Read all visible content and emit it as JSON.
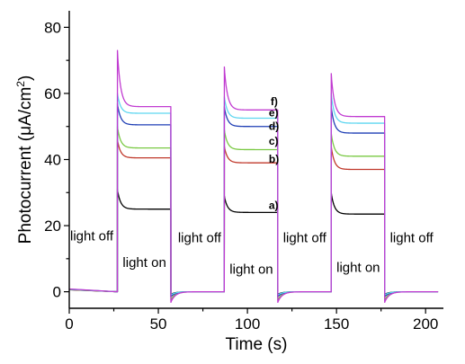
{
  "chart_data": {
    "type": "line",
    "title": "",
    "xlabel": "Time (s)",
    "ylabel_main": "Photocurrent (μA/cm",
    "ylabel_sup": "2",
    "ylabel_end": ")",
    "xlim": [
      0,
      210
    ],
    "ylim": [
      -5,
      85
    ],
    "xticks": [
      0,
      50,
      100,
      150,
      200
    ],
    "yticks": [
      0,
      20,
      40,
      60,
      80
    ],
    "grid": false,
    "legend": "none",
    "cycles": [
      {
        "on": 27,
        "off": 57
      },
      {
        "on": 87,
        "off": 117
      },
      {
        "on": 147,
        "off": 177
      }
    ],
    "end_time": 207,
    "series": [
      {
        "label": "a)",
        "color": "#000000",
        "peaks": [
          31,
          29,
          30
        ],
        "steady": [
          25,
          24,
          23.5
        ],
        "undershoot": -0.8
      },
      {
        "label": "b)",
        "color": "#c0392b",
        "peaks": [
          46,
          44,
          44
        ],
        "steady": [
          40.5,
          39,
          37
        ],
        "undershoot": -1.5
      },
      {
        "label": "c)",
        "color": "#7ac943",
        "peaks": [
          50,
          49,
          48
        ],
        "steady": [
          43.5,
          43,
          41
        ],
        "undershoot": -2.5
      },
      {
        "label": "d)",
        "color": "#1f3fb5",
        "peaks": [
          57,
          56,
          56
        ],
        "steady": [
          50.5,
          50,
          48
        ],
        "undershoot": -1.5
      },
      {
        "label": "e)",
        "color": "#5ed6f0",
        "peaks": [
          60,
          59,
          60
        ],
        "steady": [
          54,
          52.5,
          51
        ],
        "undershoot": -1.0
      },
      {
        "label": "f)",
        "color": "#c13cd1",
        "peaks": [
          73,
          68,
          66
        ],
        "steady": [
          56,
          55,
          53
        ],
        "undershoot": -3.2
      }
    ],
    "annotations": [
      {
        "text": "light off",
        "x": 0.5,
        "y": 15.5
      },
      {
        "text": "light on",
        "x": 30,
        "y": 7.5
      },
      {
        "text": "light off",
        "x": 61,
        "y": 15
      },
      {
        "text": "light on",
        "x": 90,
        "y": 5.5
      },
      {
        "text": "light off",
        "x": 120,
        "y": 15
      },
      {
        "text": "light on",
        "x": 150,
        "y": 6
      },
      {
        "text": "light off",
        "x": 180,
        "y": 15
      }
    ],
    "series_label_positions": [
      {
        "label": "f)",
        "x": 113,
        "y": 56.5
      },
      {
        "label": "e)",
        "x": 112,
        "y": 53
      },
      {
        "label": "d)",
        "x": 112,
        "y": 49
      },
      {
        "label": "c)",
        "x": 112,
        "y": 44.5
      },
      {
        "label": "b)",
        "x": 112,
        "y": 39
      },
      {
        "label": "a)",
        "x": 112,
        "y": 25
      }
    ]
  }
}
